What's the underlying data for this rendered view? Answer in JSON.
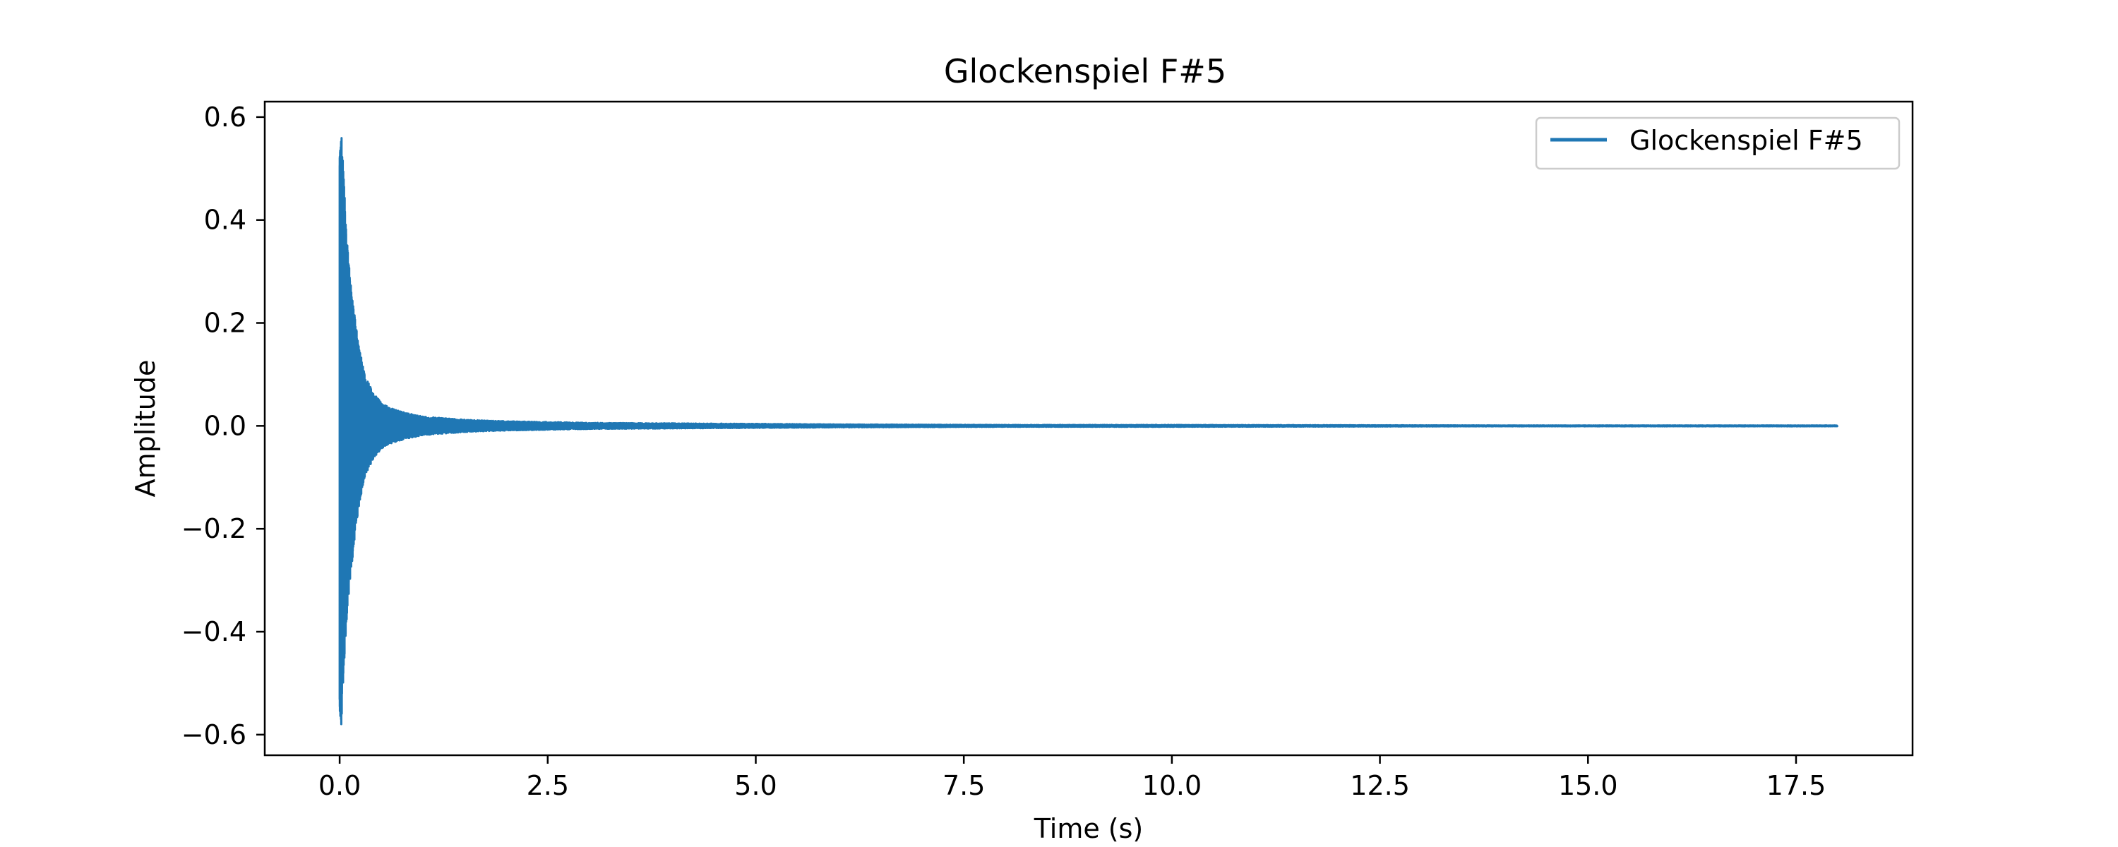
{
  "chart_data": {
    "type": "line",
    "title": "Glockenspiel F#5",
    "xlabel": "Time (s)",
    "ylabel": "Amplitude",
    "xlim": [
      -0.9,
      18.9
    ],
    "ylim": [
      -0.64,
      0.63
    ],
    "xticks": [
      0.0,
      2.5,
      5.0,
      7.5,
      10.0,
      12.5,
      15.0,
      17.5
    ],
    "xtick_labels": [
      "0.0",
      "2.5",
      "5.0",
      "7.5",
      "10.0",
      "12.5",
      "15.0",
      "17.5"
    ],
    "yticks": [
      -0.6,
      -0.4,
      -0.2,
      0.0,
      0.2,
      0.4,
      0.6
    ],
    "ytick_labels": [
      "−0.6",
      "−0.4",
      "−0.2",
      "0.0",
      "0.2",
      "0.4",
      "0.6"
    ],
    "grid": false,
    "legend_position": "top-right",
    "series": [
      {
        "name": "Glockenspiel F#5",
        "color": "#1f77b4",
        "envelope": {
          "t": [
            0.0,
            0.02,
            0.05,
            0.08,
            0.12,
            0.16,
            0.2,
            0.25,
            0.3,
            0.4,
            0.5,
            0.6,
            0.8,
            1.0,
            1.5,
            2.0,
            3.0,
            4.0,
            5.0,
            6.0,
            8.0,
            10.0,
            12.0,
            14.0,
            16.0,
            18.0
          ],
          "upper": [
            0.52,
            0.57,
            0.48,
            0.38,
            0.3,
            0.24,
            0.19,
            0.14,
            0.1,
            0.065,
            0.045,
            0.035,
            0.025,
            0.018,
            0.012,
            0.009,
            0.006,
            0.005,
            0.004,
            0.003,
            0.002,
            0.002,
            0.0015,
            0.001,
            0.001,
            0.001
          ],
          "lower": [
            -0.55,
            -0.59,
            -0.47,
            -0.39,
            -0.31,
            -0.25,
            -0.19,
            -0.14,
            -0.1,
            -0.065,
            -0.045,
            -0.035,
            -0.025,
            -0.018,
            -0.012,
            -0.009,
            -0.006,
            -0.005,
            -0.004,
            -0.003,
            -0.002,
            -0.002,
            -0.0015,
            -0.001,
            -0.001,
            -0.001
          ]
        }
      }
    ]
  }
}
